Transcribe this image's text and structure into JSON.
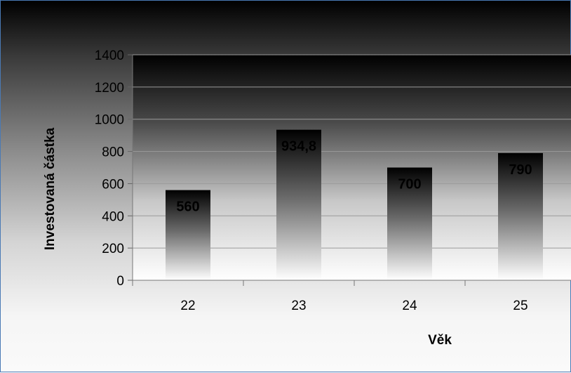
{
  "chart_data": {
    "type": "bar",
    "categories": [
      "22",
      "23",
      "24",
      "25"
    ],
    "values": [
      560,
      934.8,
      700,
      790
    ],
    "data_labels": [
      "560",
      "934,8",
      "700",
      "790"
    ],
    "xlabel": "Věk",
    "ylabel": "Investovaná částka",
    "ylim": [
      0,
      1400
    ],
    "yticks": [
      "0",
      "200",
      "400",
      "600",
      "800",
      "1000",
      "1200",
      "1400"
    ],
    "grid": true,
    "legend": "none"
  },
  "colors": {
    "frame_border": "#4a7ab5",
    "bar_top": "#000000",
    "bar_bottom": "#ffffff",
    "gridline": "#9a9a9a",
    "text": "#000000"
  }
}
